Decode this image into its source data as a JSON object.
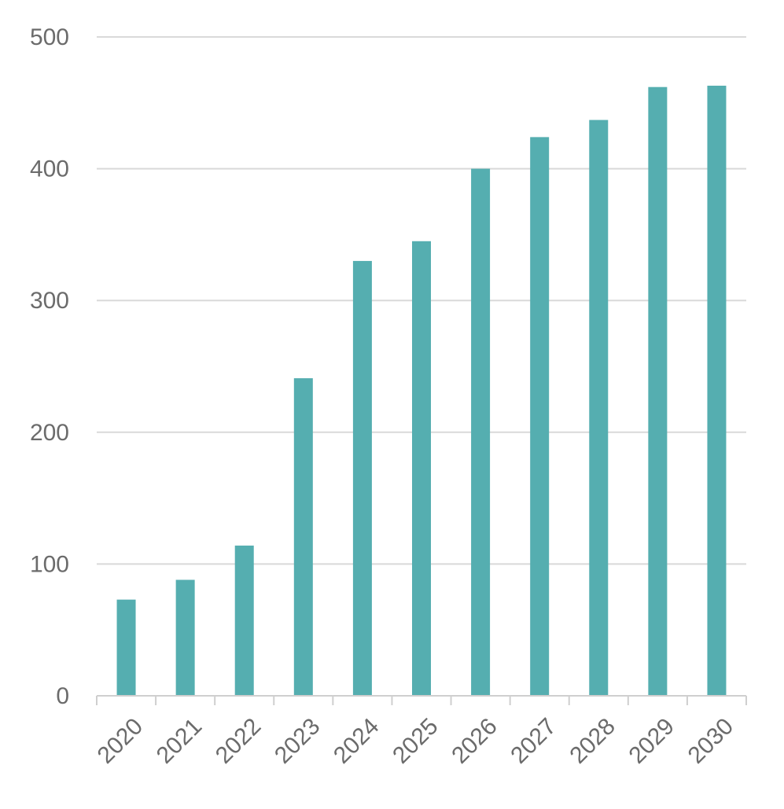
{
  "chart_data": {
    "type": "bar",
    "title": "",
    "xlabel": "",
    "ylabel": "",
    "categories": [
      "2020",
      "2021",
      "2022",
      "2023",
      "2024",
      "2025",
      "2026",
      "2027",
      "2028",
      "2029",
      "2030"
    ],
    "series": [
      {
        "values": [
          73,
          88,
          114,
          241,
          330,
          345,
          400,
          424,
          437,
          462,
          463
        ]
      }
    ],
    "ylim": [
      0,
      500
    ],
    "yticks": [
      0,
      100,
      200,
      300,
      400,
      500
    ],
    "grid": true,
    "legend": "none",
    "colors": {
      "bar": "#55aeb0",
      "grid": "#d9d9d9",
      "axis": "#cfcfcf",
      "tick_label": "#6b6b6b"
    }
  }
}
